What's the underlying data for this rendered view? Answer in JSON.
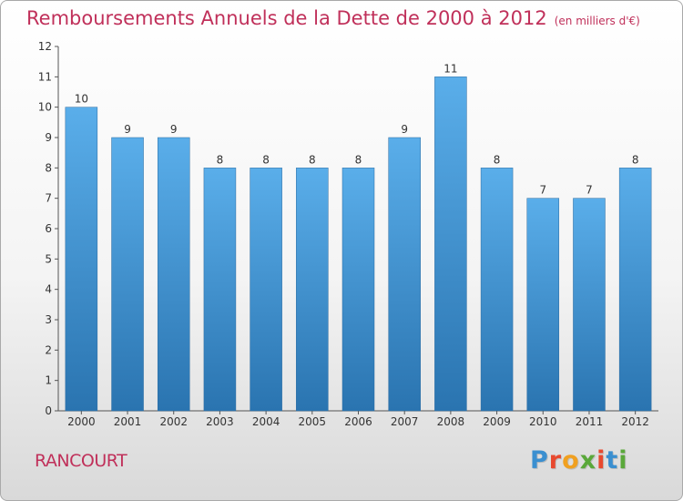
{
  "header": {
    "title": "Remboursements Annuels de la Dette de 2000 à 2012",
    "unit": "(en milliers d'€)"
  },
  "footer": {
    "city": "RANCOURT",
    "logo": "Proxiti"
  },
  "colors": {
    "title": "#c0305a",
    "bar_top": "#5aaeea",
    "bar_bottom": "#2a74b0"
  },
  "chart_data": {
    "type": "bar",
    "categories": [
      "2000",
      "2001",
      "2002",
      "2003",
      "2004",
      "2005",
      "2006",
      "2007",
      "2008",
      "2009",
      "2010",
      "2011",
      "2012"
    ],
    "values": [
      10,
      9,
      9,
      8,
      8,
      8,
      8,
      9,
      11,
      8,
      7,
      7,
      8
    ],
    "ylim": [
      0,
      12
    ],
    "yticks": [
      0,
      1,
      2,
      3,
      4,
      5,
      6,
      7,
      8,
      9,
      10,
      11,
      12
    ],
    "grid": false,
    "legend": "none"
  }
}
